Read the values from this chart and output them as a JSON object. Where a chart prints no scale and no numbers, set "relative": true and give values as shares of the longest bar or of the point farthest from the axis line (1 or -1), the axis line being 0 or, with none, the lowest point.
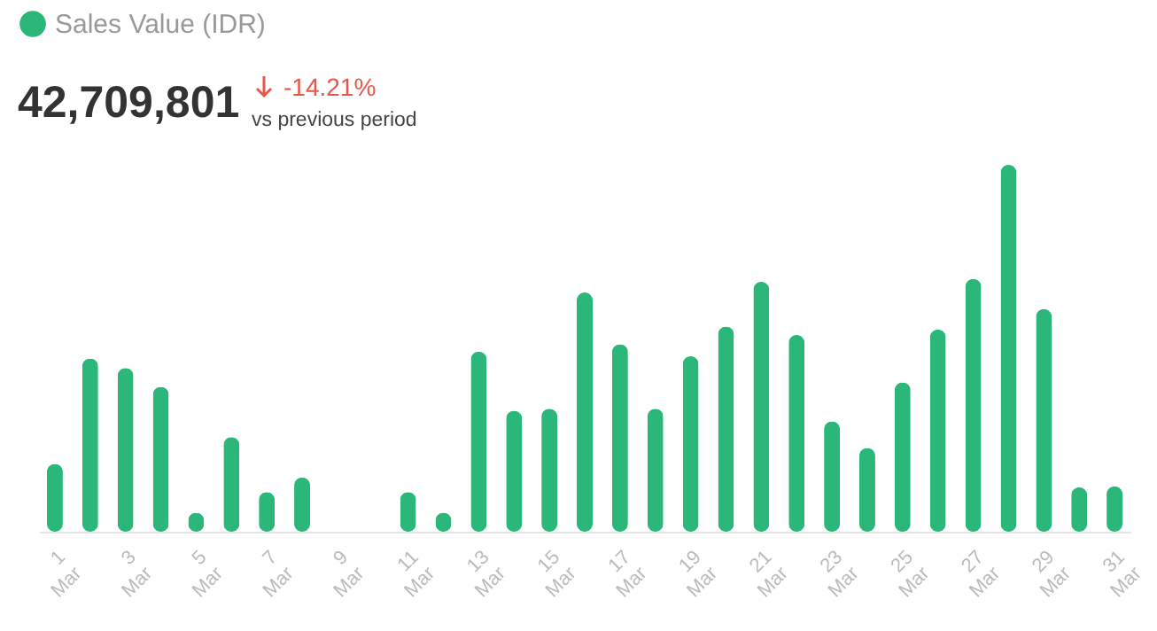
{
  "chart_data": {
    "type": "bar",
    "relative": true,
    "legend": "top left",
    "annotations": [
      "42,709,801",
      "-14.21%",
      "vs previous period"
    ],
    "categories": [
      "1 Mar",
      null,
      "3 Mar",
      null,
      "5 Mar",
      null,
      "7 Mar",
      null,
      "9 Mar",
      null,
      "11 Mar",
      null,
      "13 Mar",
      null,
      "15 Mar",
      null,
      "17 Mar",
      null,
      "19 Mar",
      null,
      "21 Mar",
      null,
      "23 Mar",
      null,
      "25 Mar",
      null,
      "27 Mar",
      null,
      "29 Mar",
      null,
      "31 Mar"
    ],
    "series": [
      {
        "name": "Sales Value (IDR)",
        "color": "#2bb67a",
        "values": [
          0.185,
          0.472,
          0.446,
          0.395,
          0.052,
          0.258,
          0.108,
          0.148,
          0,
          0,
          0.108,
          0.052,
          0.491,
          0.33,
          0.335,
          0.652,
          0.511,
          0.335,
          0.478,
          0.559,
          0.681,
          0.536,
          0.301,
          0.228,
          0.407,
          0.551,
          0.689,
          1,
          0.607,
          0.121,
          0.124
        ]
      }
    ]
  }
}
